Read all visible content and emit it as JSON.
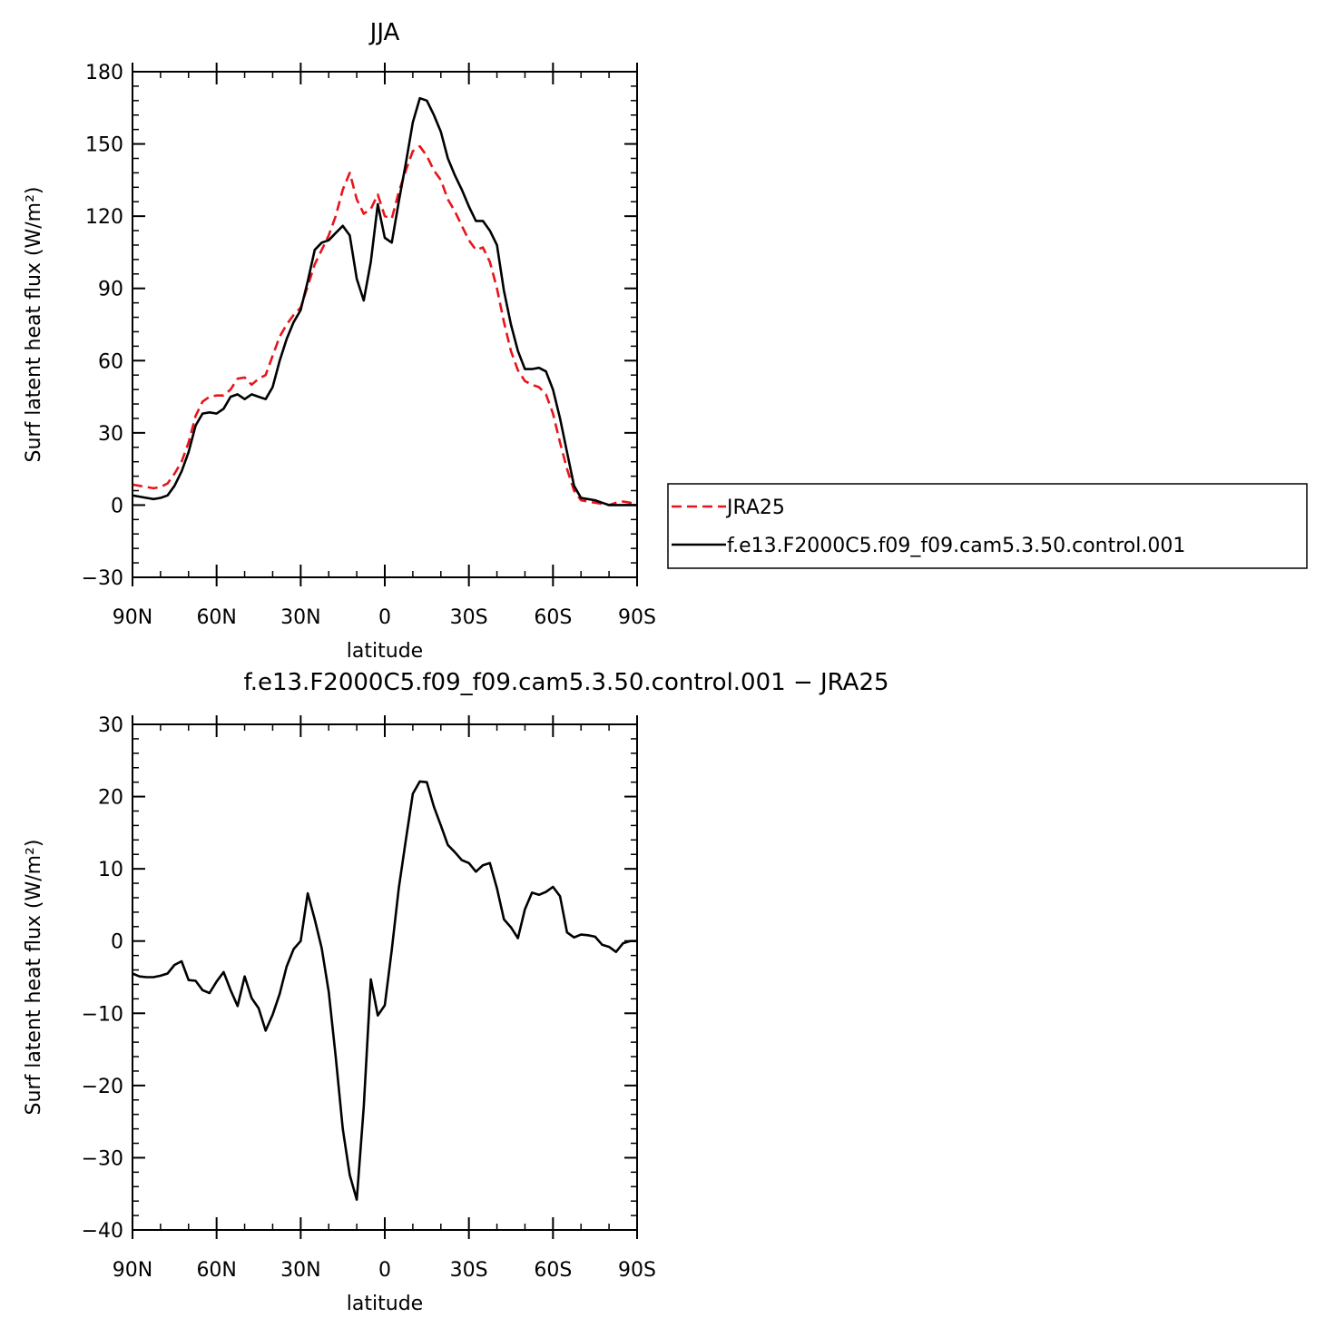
{
  "chart_data": [
    {
      "type": "line",
      "title": "JJA",
      "xlabel": "latitude",
      "ylabel": "Surf latent heat flux (W/m²)",
      "xlim": [
        90,
        -90
      ],
      "ylim": [
        -30,
        180
      ],
      "grid": false,
      "legend_position": "right",
      "x_ticks": [
        {
          "value": 90,
          "label": "90N"
        },
        {
          "value": 60,
          "label": "60N"
        },
        {
          "value": 30,
          "label": "30N"
        },
        {
          "value": 0,
          "label": "0"
        },
        {
          "value": -30,
          "label": "30S"
        },
        {
          "value": -60,
          "label": "60S"
        },
        {
          "value": -90,
          "label": "90S"
        }
      ],
      "y_ticks": [
        {
          "value": 180,
          "label": "180"
        },
        {
          "value": 150,
          "label": "150"
        },
        {
          "value": 120,
          "label": "120"
        },
        {
          "value": 90,
          "label": "90"
        },
        {
          "value": 60,
          "label": "60"
        },
        {
          "value": 30,
          "label": "30"
        },
        {
          "value": 0,
          "label": "0"
        },
        {
          "value": -30,
          "label": "−30"
        }
      ],
      "series": [
        {
          "name": "JRA25",
          "color": "#e8141b",
          "dash": "dashed",
          "x": [
            90,
            87.5,
            85,
            82.5,
            80,
            77.5,
            75,
            72.5,
            70,
            67.5,
            65,
            62.5,
            60,
            57.5,
            55,
            52.5,
            50,
            47.5,
            45,
            42.5,
            40,
            37.5,
            35,
            32.5,
            30,
            27.5,
            25,
            22.5,
            20,
            17.5,
            15,
            12.5,
            10,
            7.5,
            5,
            2.5,
            0,
            -2.5,
            -5,
            -7.5,
            -10,
            -12.5,
            -15,
            -17.5,
            -20,
            -22.5,
            -25,
            -27.5,
            -30,
            -32.5,
            -35,
            -37.5,
            -40,
            -42.5,
            -45,
            -47.5,
            -50,
            -52.5,
            -55,
            -57.5,
            -60,
            -62.5,
            -65,
            -67.5,
            -70,
            -72.5,
            -75,
            -77.5,
            -80,
            -82.5,
            -85,
            -87.5,
            -90
          ],
          "values": [
            8.5,
            8,
            7.5,
            7,
            7.5,
            9,
            13,
            18,
            26,
            37,
            43,
            45,
            45.5,
            45.5,
            48,
            52.5,
            53,
            50,
            52.5,
            54,
            62,
            70,
            75,
            79,
            82,
            91,
            100,
            106,
            112,
            120,
            131,
            138,
            127,
            121,
            123,
            129,
            120,
            119,
            130,
            139,
            147,
            149,
            145,
            139,
            135,
            127,
            122,
            116,
            110,
            106,
            107,
            101,
            90,
            76,
            64,
            56,
            51.5,
            50,
            49,
            46,
            38,
            26,
            15,
            6,
            2,
            1.5,
            1,
            0.5,
            0,
            1,
            1.5,
            1,
            0.5
          ]
        },
        {
          "name": "f.e13.F2000C5.f09_f09.cam5.3.50.control.001",
          "color": "#000000",
          "dash": "solid",
          "x": [
            90,
            87.5,
            85,
            82.5,
            80,
            77.5,
            75,
            72.5,
            70,
            67.5,
            65,
            62.5,
            60,
            57.5,
            55,
            52.5,
            50,
            47.5,
            45,
            42.5,
            40,
            37.5,
            35,
            32.5,
            30,
            27.5,
            25,
            22.5,
            20,
            17.5,
            15,
            12.5,
            10,
            7.5,
            5,
            2.5,
            0,
            -2.5,
            -5,
            -7.5,
            -10,
            -12.5,
            -15,
            -17.5,
            -20,
            -22.5,
            -25,
            -27.5,
            -30,
            -32.5,
            -35,
            -37.5,
            -40,
            -42.5,
            -45,
            -47.5,
            -50,
            -52.5,
            -55,
            -57.5,
            -60,
            -62.5,
            -65,
            -67.5,
            -70,
            -72.5,
            -75,
            -77.5,
            -80,
            -82.5,
            -85,
            -87.5,
            -90
          ],
          "values": [
            4,
            3.5,
            3,
            2.5,
            3,
            4,
            8,
            14,
            22,
            33,
            38,
            38.5,
            38,
            40,
            45,
            46,
            44,
            46,
            45,
            44,
            49,
            60,
            69,
            76,
            81,
            93,
            106,
            109,
            110,
            113,
            116,
            112,
            94,
            85,
            101,
            125,
            111,
            109,
            126,
            142,
            159,
            169,
            168,
            162,
            155,
            144,
            137,
            131,
            124,
            118,
            118,
            114,
            108,
            89,
            75,
            64,
            56.5,
            56.5,
            57,
            55.5,
            48,
            36,
            22,
            8,
            3,
            2.5,
            2,
            1,
            0,
            0,
            0,
            0,
            0
          ]
        }
      ]
    },
    {
      "type": "line",
      "title": "f.e13.F2000C5.f09_f09.cam5.3.50.control.001 − JRA25",
      "xlabel": "latitude",
      "ylabel": "Surf latent heat flux (W/m²)",
      "xlim": [
        90,
        -90
      ],
      "ylim": [
        -40,
        30
      ],
      "grid": false,
      "x_ticks": [
        {
          "value": 90,
          "label": "90N"
        },
        {
          "value": 60,
          "label": "60N"
        },
        {
          "value": 30,
          "label": "30N"
        },
        {
          "value": 0,
          "label": "0"
        },
        {
          "value": -30,
          "label": "30S"
        },
        {
          "value": -60,
          "label": "60S"
        },
        {
          "value": -90,
          "label": "90S"
        }
      ],
      "y_ticks": [
        {
          "value": 30,
          "label": "30"
        },
        {
          "value": 20,
          "label": "20"
        },
        {
          "value": 10,
          "label": "10"
        },
        {
          "value": 0,
          "label": "0"
        },
        {
          "value": -10,
          "label": "−10"
        },
        {
          "value": -20,
          "label": "−20"
        },
        {
          "value": -30,
          "label": "−30"
        },
        {
          "value": -40,
          "label": "−40"
        }
      ],
      "series": [
        {
          "color": "#000000",
          "dash": "solid",
          "x": [
            90,
            87.5,
            85,
            82.5,
            80,
            77.5,
            75,
            72.5,
            70,
            67.5,
            65,
            62.5,
            60,
            57.5,
            55,
            52.5,
            50,
            47.5,
            45,
            42.5,
            40,
            37.5,
            35,
            32.5,
            30,
            27.5,
            25,
            22.5,
            20,
            17.5,
            15,
            12.5,
            10,
            7.5,
            5,
            2.5,
            0,
            -2.5,
            -5,
            -7.5,
            -10,
            -12.5,
            -15,
            -17.5,
            -20,
            -22.5,
            -25,
            -27.5,
            -30,
            -32.5,
            -35,
            -37.5,
            -40,
            -42.5,
            -45,
            -47.5,
            -50,
            -52.5,
            -55,
            -57.5,
            -60,
            -62.5,
            -65,
            -67.5,
            -70,
            -72.5,
            -75,
            -77.5,
            -80,
            -82.5,
            -85,
            -87.5,
            -90
          ],
          "values": [
            -4.5,
            -4.9,
            -5,
            -5,
            -4.8,
            -4.5,
            -3.3,
            -2.8,
            -5.4,
            -5.5,
            -6.8,
            -7.2,
            -5.6,
            -4.3,
            -6.8,
            -9,
            -4.9,
            -7.9,
            -9.3,
            -12.4,
            -10.2,
            -7.3,
            -3.5,
            -1.1,
            0,
            6.6,
            3,
            -1,
            -7,
            -16,
            -26,
            -32.4,
            -35.8,
            -23,
            -5.3,
            -10.3,
            -8.9,
            -1.2,
            7.3,
            14,
            20.4,
            22.1,
            22,
            18.6,
            16,
            13.3,
            12.3,
            11.2,
            10.8,
            9.6,
            10.5,
            10.8,
            7.3,
            3,
            1.9,
            0.4,
            4.4,
            6.7,
            6.4,
            6.8,
            7.5,
            6.2,
            1.2,
            0.5,
            0.9,
            0.8,
            0.6,
            -0.5,
            -0.8,
            -1.5,
            -0.3,
            0,
            0
          ]
        }
      ]
    }
  ]
}
